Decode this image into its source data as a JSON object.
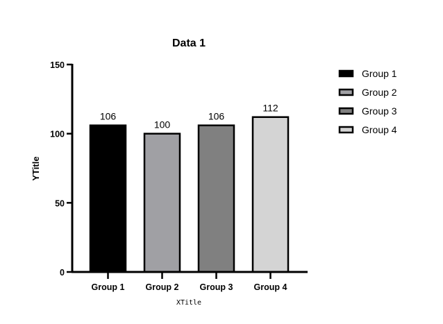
{
  "chart_data": {
    "type": "bar",
    "title": "Data 1",
    "xlabel": "XTitle",
    "ylabel": "YTitle",
    "ylim": [
      0,
      150
    ],
    "yticks": [
      0,
      50,
      100,
      150
    ],
    "categories": [
      "Group 1",
      "Group 2",
      "Group 3",
      "Group 4"
    ],
    "values": [
      106,
      100,
      106,
      112
    ],
    "data_labels": [
      "106",
      "100",
      "106",
      "112"
    ],
    "colors": [
      "#000000",
      "#a0a0a4",
      "#808080",
      "#d4d4d4"
    ],
    "legend": {
      "placement": "top-right",
      "entries": [
        "Group 1",
        "Group 2",
        "Group 3",
        "Group 4"
      ]
    },
    "grid": false
  }
}
